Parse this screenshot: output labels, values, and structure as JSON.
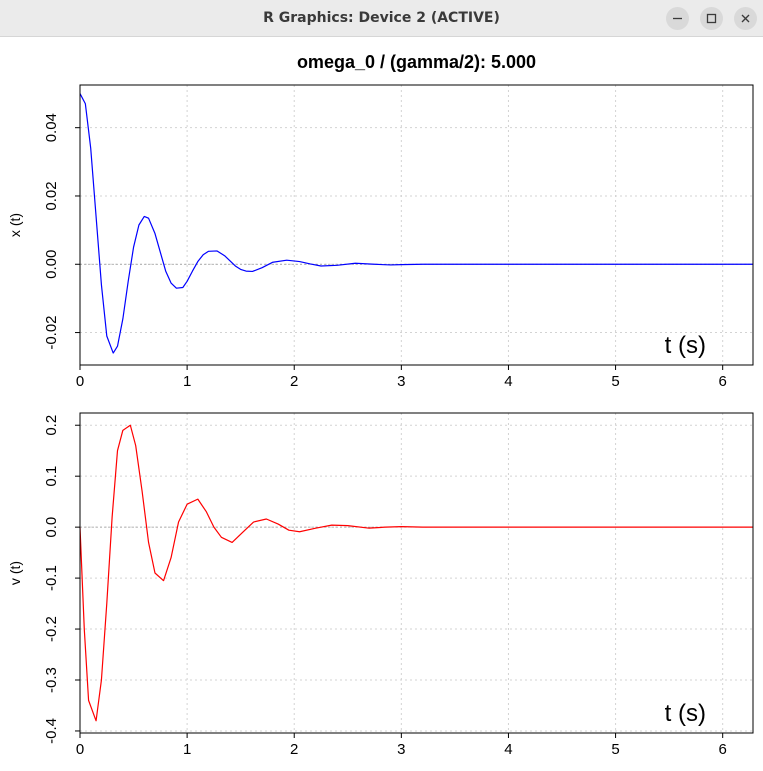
{
  "window": {
    "title": "R Graphics: Device 2 (ACTIVE)",
    "buttons": [
      "minimize-icon",
      "maximize-icon",
      "close-icon"
    ]
  },
  "chart_data": [
    {
      "type": "line",
      "title": "omega_0 / (gamma/2): 5.000",
      "xlabel": "",
      "ylabel": "x (t)",
      "annotation": "t (s)",
      "xlim": [
        0,
        6.283
      ],
      "ylim": [
        -0.0295,
        0.0525
      ],
      "x_ticks": [
        0,
        1,
        2,
        3,
        4,
        5,
        6
      ],
      "y_ticks": [
        -0.02,
        0.0,
        0.02,
        0.04
      ],
      "y_tick_labels": [
        "-0.02",
        "0.00",
        "0.02",
        "0.04"
      ],
      "grid": true,
      "color": "#0000ff",
      "series": [
        {
          "x": [
            0,
            0.05,
            0.1,
            0.15,
            0.2,
            0.25,
            0.31,
            0.35,
            0.4,
            0.45,
            0.5,
            0.55,
            0.6,
            0.64,
            0.7,
            0.75,
            0.8,
            0.85,
            0.9,
            0.96,
            1.0,
            1.05,
            1.1,
            1.15,
            1.2,
            1.28,
            1.35,
            1.4,
            1.45,
            1.5,
            1.55,
            1.61,
            1.7,
            1.8,
            1.93,
            2.05,
            2.15,
            2.25,
            2.4,
            2.57,
            2.75,
            2.9,
            3.0,
            3.2,
            3.5,
            4.0,
            5.0,
            6.283
          ],
          "values": [
            0.05,
            0.047,
            0.034,
            0.014,
            -0.006,
            -0.021,
            -0.026,
            -0.024,
            -0.016,
            -0.005,
            0.005,
            0.0115,
            0.014,
            0.0135,
            0.009,
            0.0035,
            -0.002,
            -0.0055,
            -0.007,
            -0.0068,
            -0.005,
            -0.002,
            0.0008,
            0.0028,
            0.0038,
            0.0039,
            0.0025,
            0.001,
            -0.0005,
            -0.0015,
            -0.002,
            -0.0021,
            -0.001,
            0.0006,
            0.0012,
            0.0008,
            0.0001,
            -0.0005,
            -0.0003,
            0.0003,
            0.0,
            -0.0002,
            -0.0001,
            0.0,
            0.0,
            0.0,
            0.0,
            0.0
          ]
        }
      ]
    },
    {
      "type": "line",
      "title": "",
      "xlabel": "",
      "ylabel": "v (t)",
      "annotation": "t (s)",
      "xlim": [
        0,
        6.283
      ],
      "ylim": [
        -0.404,
        0.224
      ],
      "x_ticks": [
        0,
        1,
        2,
        3,
        4,
        5,
        6
      ],
      "y_ticks": [
        -0.4,
        -0.3,
        -0.2,
        -0.1,
        0.0,
        0.1,
        0.2
      ],
      "y_tick_labels": [
        "-0.4",
        "-0.3",
        "-0.2",
        "-0.1",
        "0.0",
        "0.1",
        "0.2"
      ],
      "grid": true,
      "color": "#ff0000",
      "series": [
        {
          "x": [
            0,
            0.04,
            0.08,
            0.15,
            0.2,
            0.25,
            0.3,
            0.35,
            0.4,
            0.47,
            0.52,
            0.58,
            0.64,
            0.7,
            0.78,
            0.85,
            0.92,
            1.0,
            1.1,
            1.18,
            1.25,
            1.32,
            1.42,
            1.52,
            1.62,
            1.74,
            1.85,
            1.95,
            2.05,
            2.2,
            2.35,
            2.5,
            2.7,
            2.85,
            3.0,
            3.2,
            3.5,
            4.0,
            5.0,
            6.283
          ],
          "values": [
            0.0,
            -0.2,
            -0.34,
            -0.38,
            -0.3,
            -0.15,
            0.02,
            0.15,
            0.19,
            0.2,
            0.16,
            0.07,
            -0.03,
            -0.09,
            -0.105,
            -0.06,
            0.01,
            0.045,
            0.055,
            0.03,
            0.0,
            -0.02,
            -0.03,
            -0.01,
            0.01,
            0.016,
            0.006,
            -0.006,
            -0.009,
            -0.002,
            0.004,
            0.003,
            -0.002,
            0.0,
            0.001,
            0.0,
            0.0,
            0.0,
            0.0,
            0.0
          ]
        }
      ]
    }
  ]
}
